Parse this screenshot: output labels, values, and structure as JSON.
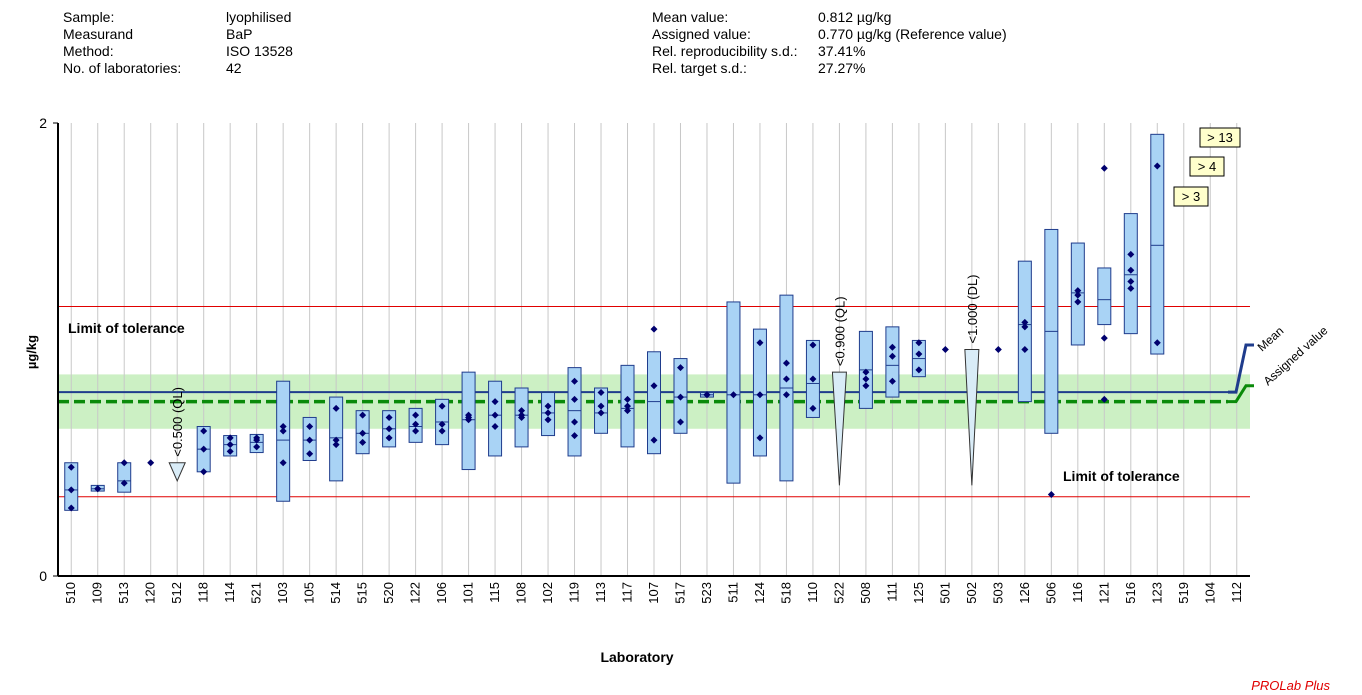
{
  "info": {
    "left": [
      {
        "label": "Sample:",
        "value": "lyophilised"
      },
      {
        "label": "Measurand",
        "value": "BaP"
      },
      {
        "label": "Method:",
        "value": "ISO 13528"
      },
      {
        "label": "No. of laboratories:",
        "value": "42"
      }
    ],
    "right": [
      {
        "label": "Mean value:",
        "value": "0.812 µg/kg"
      },
      {
        "label": "Assigned value:",
        "value": "0.770 µg/kg (Reference value)"
      },
      {
        "label": "Rel. reproducibility s.d.:",
        "value": "37.41%"
      },
      {
        "label": "Rel. target s.d.:",
        "value": "27.27%"
      }
    ]
  },
  "footer": "PROLab Plus",
  "chart_data": {
    "type": "box",
    "ylabel": "µg/kg",
    "xlabel": "Laboratory",
    "ylim": [
      0,
      2
    ],
    "y_ticks": [
      "0",
      "2"
    ],
    "grid": "vertical",
    "lines": {
      "mean": 0.812,
      "assigned": 0.77,
      "tolerance_upper": 1.19,
      "tolerance_lower": 0.35,
      "target_band": [
        0.65,
        0.89
      ]
    },
    "annotations": {
      "tolerance_upper_label": "Limit of tolerance",
      "tolerance_lower_label": "Limit of tolerance",
      "mean_label": "Mean",
      "assigned_label": "Assigned value"
    },
    "labs": [
      {
        "lab": "510",
        "box": [
          0.29,
          0.5
        ],
        "median": 0.38,
        "points": [
          0.3,
          0.38,
          0.48
        ]
      },
      {
        "lab": "109",
        "box": [
          0.375,
          0.4
        ],
        "median": 0.385,
        "points": [
          0.385,
          0.385
        ]
      },
      {
        "lab": "513",
        "box": [
          0.37,
          0.5
        ],
        "median": 0.42,
        "points": [
          0.41,
          0.5
        ]
      },
      {
        "lab": "120",
        "points": [
          0.5
        ]
      },
      {
        "lab": "512",
        "limit": {
          "text": "<0.500 (QL)",
          "top": 0.5,
          "bottom": 0.42,
          "shape": "small"
        }
      },
      {
        "lab": "118",
        "box": [
          0.46,
          0.66
        ],
        "median": 0.56,
        "points": [
          0.46,
          0.56,
          0.64
        ]
      },
      {
        "lab": "114",
        "box": [
          0.53,
          0.62
        ],
        "median": 0.58,
        "points": [
          0.55,
          0.58,
          0.61
        ]
      },
      {
        "lab": "521",
        "box": [
          0.545,
          0.625
        ],
        "median": 0.59,
        "points": [
          0.57,
          0.6,
          0.61
        ]
      },
      {
        "lab": "103",
        "box": [
          0.33,
          0.86
        ],
        "median": 0.6,
        "points": [
          0.5,
          0.64,
          0.66
        ]
      },
      {
        "lab": "105",
        "box": [
          0.51,
          0.7
        ],
        "median": 0.6,
        "points": [
          0.54,
          0.6,
          0.66
        ]
      },
      {
        "lab": "514",
        "box": [
          0.42,
          0.79
        ],
        "median": 0.61,
        "points": [
          0.58,
          0.6,
          0.74
        ]
      },
      {
        "lab": "515",
        "box": [
          0.54,
          0.73
        ],
        "median": 0.63,
        "points": [
          0.59,
          0.63,
          0.71
        ]
      },
      {
        "lab": "520",
        "box": [
          0.57,
          0.73
        ],
        "median": 0.65,
        "points": [
          0.61,
          0.65,
          0.7
        ]
      },
      {
        "lab": "122",
        "box": [
          0.59,
          0.74
        ],
        "median": 0.66,
        "points": [
          0.64,
          0.67,
          0.71
        ]
      },
      {
        "lab": "106",
        "box": [
          0.58,
          0.78
        ],
        "median": 0.68,
        "points": [
          0.64,
          0.67,
          0.75
        ]
      },
      {
        "lab": "101",
        "box": [
          0.47,
          0.9
        ],
        "median": 0.69,
        "points": [
          0.69,
          0.71,
          0.7
        ]
      },
      {
        "lab": "115",
        "box": [
          0.53,
          0.86
        ],
        "median": 0.71,
        "points": [
          0.66,
          0.71,
          0.77
        ]
      },
      {
        "lab": "108",
        "box": [
          0.57,
          0.83
        ],
        "median": 0.71,
        "points": [
          0.7,
          0.71,
          0.73
        ]
      },
      {
        "lab": "102",
        "box": [
          0.62,
          0.81
        ],
        "median": 0.72,
        "points": [
          0.69,
          0.72,
          0.75
        ]
      },
      {
        "lab": "119",
        "box": [
          0.53,
          0.92
        ],
        "median": 0.73,
        "points": [
          0.62,
          0.68,
          0.78,
          0.86
        ]
      },
      {
        "lab": "113",
        "box": [
          0.63,
          0.83
        ],
        "median": 0.72,
        "points": [
          0.72,
          0.75,
          0.81
        ]
      },
      {
        "lab": "117",
        "box": [
          0.57,
          0.93
        ],
        "median": 0.74,
        "points": [
          0.73,
          0.75,
          0.78
        ]
      },
      {
        "lab": "107",
        "box": [
          0.54,
          0.99
        ],
        "median": 0.77,
        "points": [
          0.6,
          0.84,
          1.09
        ]
      },
      {
        "lab": "517",
        "box": [
          0.63,
          0.96
        ],
        "median": 0.79,
        "points": [
          0.68,
          0.79,
          0.92
        ]
      },
      {
        "lab": "523",
        "box": [
          0.79,
          0.81
        ],
        "median": 0.8,
        "points": [
          0.8,
          0.8
        ]
      },
      {
        "lab": "511",
        "box": [
          0.41,
          1.21
        ],
        "median": 0.8,
        "points": [
          0.8
        ]
      },
      {
        "lab": "124",
        "box": [
          0.53,
          1.09
        ],
        "median": 0.8,
        "points": [
          0.61,
          0.8,
          1.03
        ]
      },
      {
        "lab": "518",
        "box": [
          0.42,
          1.24
        ],
        "median": 0.83,
        "points": [
          0.8,
          0.87,
          0.94
        ]
      },
      {
        "lab": "110",
        "box": [
          0.7,
          1.04
        ],
        "median": 0.85,
        "points": [
          0.74,
          0.87,
          1.02
        ]
      },
      {
        "lab": "522",
        "limit": {
          "text": "<0.900 (QL)",
          "top": 0.9,
          "bottom": 0.4,
          "shape": "big"
        }
      },
      {
        "lab": "508",
        "box": [
          0.74,
          1.08
        ],
        "median": 0.91,
        "points": [
          0.84,
          0.87,
          0.9
        ]
      },
      {
        "lab": "111",
        "box": [
          0.79,
          1.1
        ],
        "median": 0.93,
        "points": [
          0.86,
          0.97,
          1.01
        ]
      },
      {
        "lab": "125",
        "box": [
          0.88,
          1.04
        ],
        "median": 0.96,
        "points": [
          0.91,
          0.98,
          1.03
        ]
      },
      {
        "lab": "501",
        "points": [
          1.0
        ]
      },
      {
        "lab": "502",
        "limit": {
          "text": "<1.000 (DL)",
          "top": 1.0,
          "bottom": 0.4,
          "shape": "big"
        }
      },
      {
        "lab": "503",
        "points": [
          1.0
        ]
      },
      {
        "lab": "126",
        "box": [
          0.77,
          1.39
        ],
        "median": 1.11,
        "points": [
          1.0,
          1.1,
          1.12
        ]
      },
      {
        "lab": "506",
        "box": [
          0.63,
          1.53
        ],
        "median": 1.08,
        "points": [
          0.36
        ]
      },
      {
        "lab": "116",
        "box": [
          1.02,
          1.47
        ],
        "median": 1.25,
        "points": [
          1.21,
          1.24,
          1.26
        ]
      },
      {
        "lab": "121",
        "box": [
          1.11,
          1.36
        ],
        "median": 1.22,
        "points": [
          0.78,
          1.05,
          1.8
        ]
      },
      {
        "lab": "516",
        "box": [
          1.07,
          1.6
        ],
        "median": 1.33,
        "points": [
          1.27,
          1.3,
          1.35,
          1.42
        ]
      },
      {
        "lab": "123",
        "box": [
          0.98,
          1.95
        ],
        "median": 1.46,
        "points": [
          1.03,
          1.81
        ]
      },
      {
        "lab": "519"
      },
      {
        "lab": "104"
      },
      {
        "lab": "112"
      }
    ],
    "off_scale": [
      {
        "text": "> 13"
      },
      {
        "text": "> 4"
      },
      {
        "text": "> 3"
      }
    ]
  }
}
